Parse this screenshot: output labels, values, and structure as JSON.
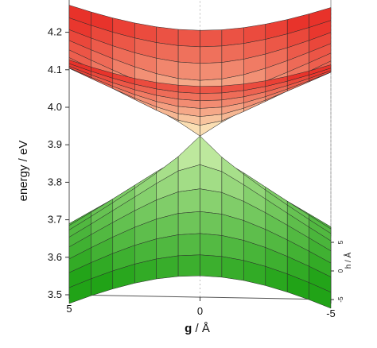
{
  "chart_data": {
    "type": "surface",
    "title": "",
    "zlabel": "energy / eV",
    "xlabel_bold": "g",
    "xlabel_rest": " / Å",
    "ylabel": "h / Å",
    "z_ticks": [
      "3.5",
      "3.6",
      "3.7",
      "3.8",
      "3.9",
      "4.0",
      "4.1",
      "4.2"
    ],
    "x_ticks": [
      "5",
      "0",
      "-5"
    ],
    "y_ticks": [
      "5",
      "0",
      "-5"
    ],
    "zlim": [
      3.5,
      4.2
    ],
    "xlim": [
      5,
      -5
    ],
    "ylim": [
      -5,
      5
    ],
    "surfaces": [
      {
        "state": "upper",
        "color_high": "#e8322a",
        "color_low": "#fdf6c6",
        "min": 3.86,
        "edge_max": 4.09
      },
      {
        "state": "lower",
        "color_high": "#d9f5b5",
        "color_low": "#21a317",
        "max": 3.855,
        "edge_min": 3.53
      }
    ],
    "conical_intersection": {
      "g": 0,
      "h": 0,
      "energy": 3.855
    }
  }
}
